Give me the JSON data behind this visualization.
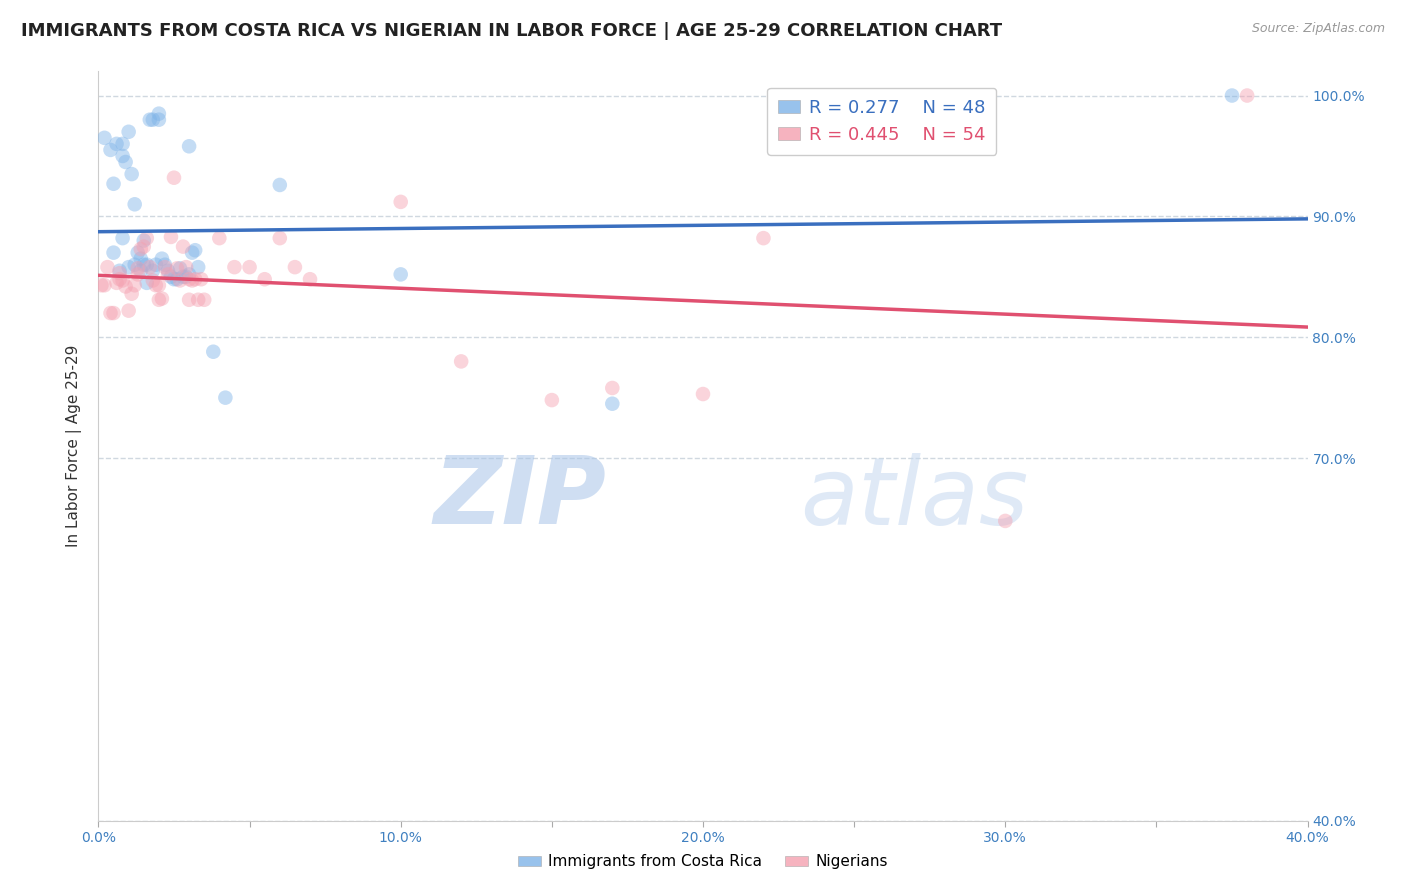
{
  "title": "IMMIGRANTS FROM COSTA RICA VS NIGERIAN IN LABOR FORCE | AGE 25-29 CORRELATION CHART",
  "source": "Source: ZipAtlas.com",
  "ylabel": "In Labor Force | Age 25-29",
  "xlim": [
    0.0,
    0.4
  ],
  "ylim": [
    0.4,
    1.02
  ],
  "xticks": [
    0.0,
    0.05,
    0.1,
    0.15,
    0.2,
    0.25,
    0.3,
    0.35,
    0.4
  ],
  "xticklabels": [
    "0.0%",
    "",
    "10.0%",
    "",
    "20.0%",
    "",
    "30.0%",
    "",
    "40.0%"
  ],
  "yticks": [
    0.4,
    0.7,
    0.8,
    0.9,
    1.0
  ],
  "yticklabels": [
    "40.0%",
    "70.0%",
    "80.0%",
    "90.0%",
    "100.0%"
  ],
  "blue_color": "#7EB3E8",
  "pink_color": "#F4A0B0",
  "blue_line_color": "#3A6FBF",
  "pink_line_color": "#E05070",
  "legend_R_blue": "R = 0.277",
  "legend_N_blue": "N = 48",
  "legend_R_pink": "R = 0.445",
  "legend_N_pink": "N = 54",
  "blue_x": [
    0.002,
    0.004,
    0.006,
    0.008,
    0.009,
    0.01,
    0.01,
    0.011,
    0.012,
    0.012,
    0.013,
    0.014,
    0.014,
    0.015,
    0.016,
    0.016,
    0.017,
    0.018,
    0.018,
    0.019,
    0.02,
    0.02,
    0.021,
    0.022,
    0.023,
    0.024,
    0.025,
    0.026,
    0.027,
    0.028,
    0.029,
    0.03,
    0.03,
    0.031,
    0.032,
    0.033,
    0.005,
    0.005,
    0.007,
    0.008,
    0.038,
    0.042,
    0.06,
    0.1,
    0.17,
    0.375,
    0.015,
    0.008
  ],
  "blue_y": [
    0.965,
    0.955,
    0.96,
    0.96,
    0.945,
    0.97,
    0.858,
    0.935,
    0.91,
    0.86,
    0.87,
    0.865,
    0.855,
    0.86,
    0.86,
    0.845,
    0.98,
    0.98,
    0.855,
    0.86,
    0.985,
    0.98,
    0.865,
    0.86,
    0.855,
    0.85,
    0.848,
    0.848,
    0.857,
    0.85,
    0.85,
    0.958,
    0.852,
    0.87,
    0.872,
    0.858,
    0.927,
    0.87,
    0.855,
    0.95,
    0.788,
    0.75,
    0.926,
    0.852,
    0.745,
    1.0,
    0.88,
    0.882
  ],
  "pink_x": [
    0.001,
    0.002,
    0.003,
    0.004,
    0.005,
    0.006,
    0.007,
    0.007,
    0.008,
    0.009,
    0.01,
    0.011,
    0.012,
    0.013,
    0.013,
    0.014,
    0.015,
    0.016,
    0.017,
    0.018,
    0.019,
    0.02,
    0.02,
    0.021,
    0.022,
    0.023,
    0.024,
    0.025,
    0.026,
    0.027,
    0.028,
    0.029,
    0.03,
    0.03,
    0.031,
    0.032,
    0.033,
    0.034,
    0.035,
    0.04,
    0.045,
    0.05,
    0.055,
    0.06,
    0.065,
    0.07,
    0.1,
    0.12,
    0.15,
    0.17,
    0.2,
    0.22,
    0.3,
    0.38
  ],
  "pink_y": [
    0.843,
    0.843,
    0.858,
    0.82,
    0.82,
    0.845,
    0.853,
    0.848,
    0.847,
    0.842,
    0.822,
    0.836,
    0.843,
    0.852,
    0.857,
    0.873,
    0.875,
    0.882,
    0.858,
    0.847,
    0.843,
    0.843,
    0.831,
    0.832,
    0.858,
    0.852,
    0.883,
    0.932,
    0.857,
    0.847,
    0.875,
    0.858,
    0.848,
    0.831,
    0.847,
    0.848,
    0.831,
    0.848,
    0.831,
    0.882,
    0.858,
    0.858,
    0.848,
    0.882,
    0.858,
    0.848,
    0.912,
    0.78,
    0.748,
    0.758,
    0.753,
    0.882,
    0.648,
    1.0
  ],
  "watermark_zip": "ZIP",
  "watermark_atlas": "atlas",
  "watermark_color": "#C5D8F0",
  "background_color": "#FFFFFF",
  "grid_color": "#D0D8E0",
  "axis_color": "#4080C0",
  "title_fontsize": 13,
  "label_fontsize": 11,
  "tick_fontsize": 10,
  "marker_size": 110,
  "marker_alpha": 0.45
}
